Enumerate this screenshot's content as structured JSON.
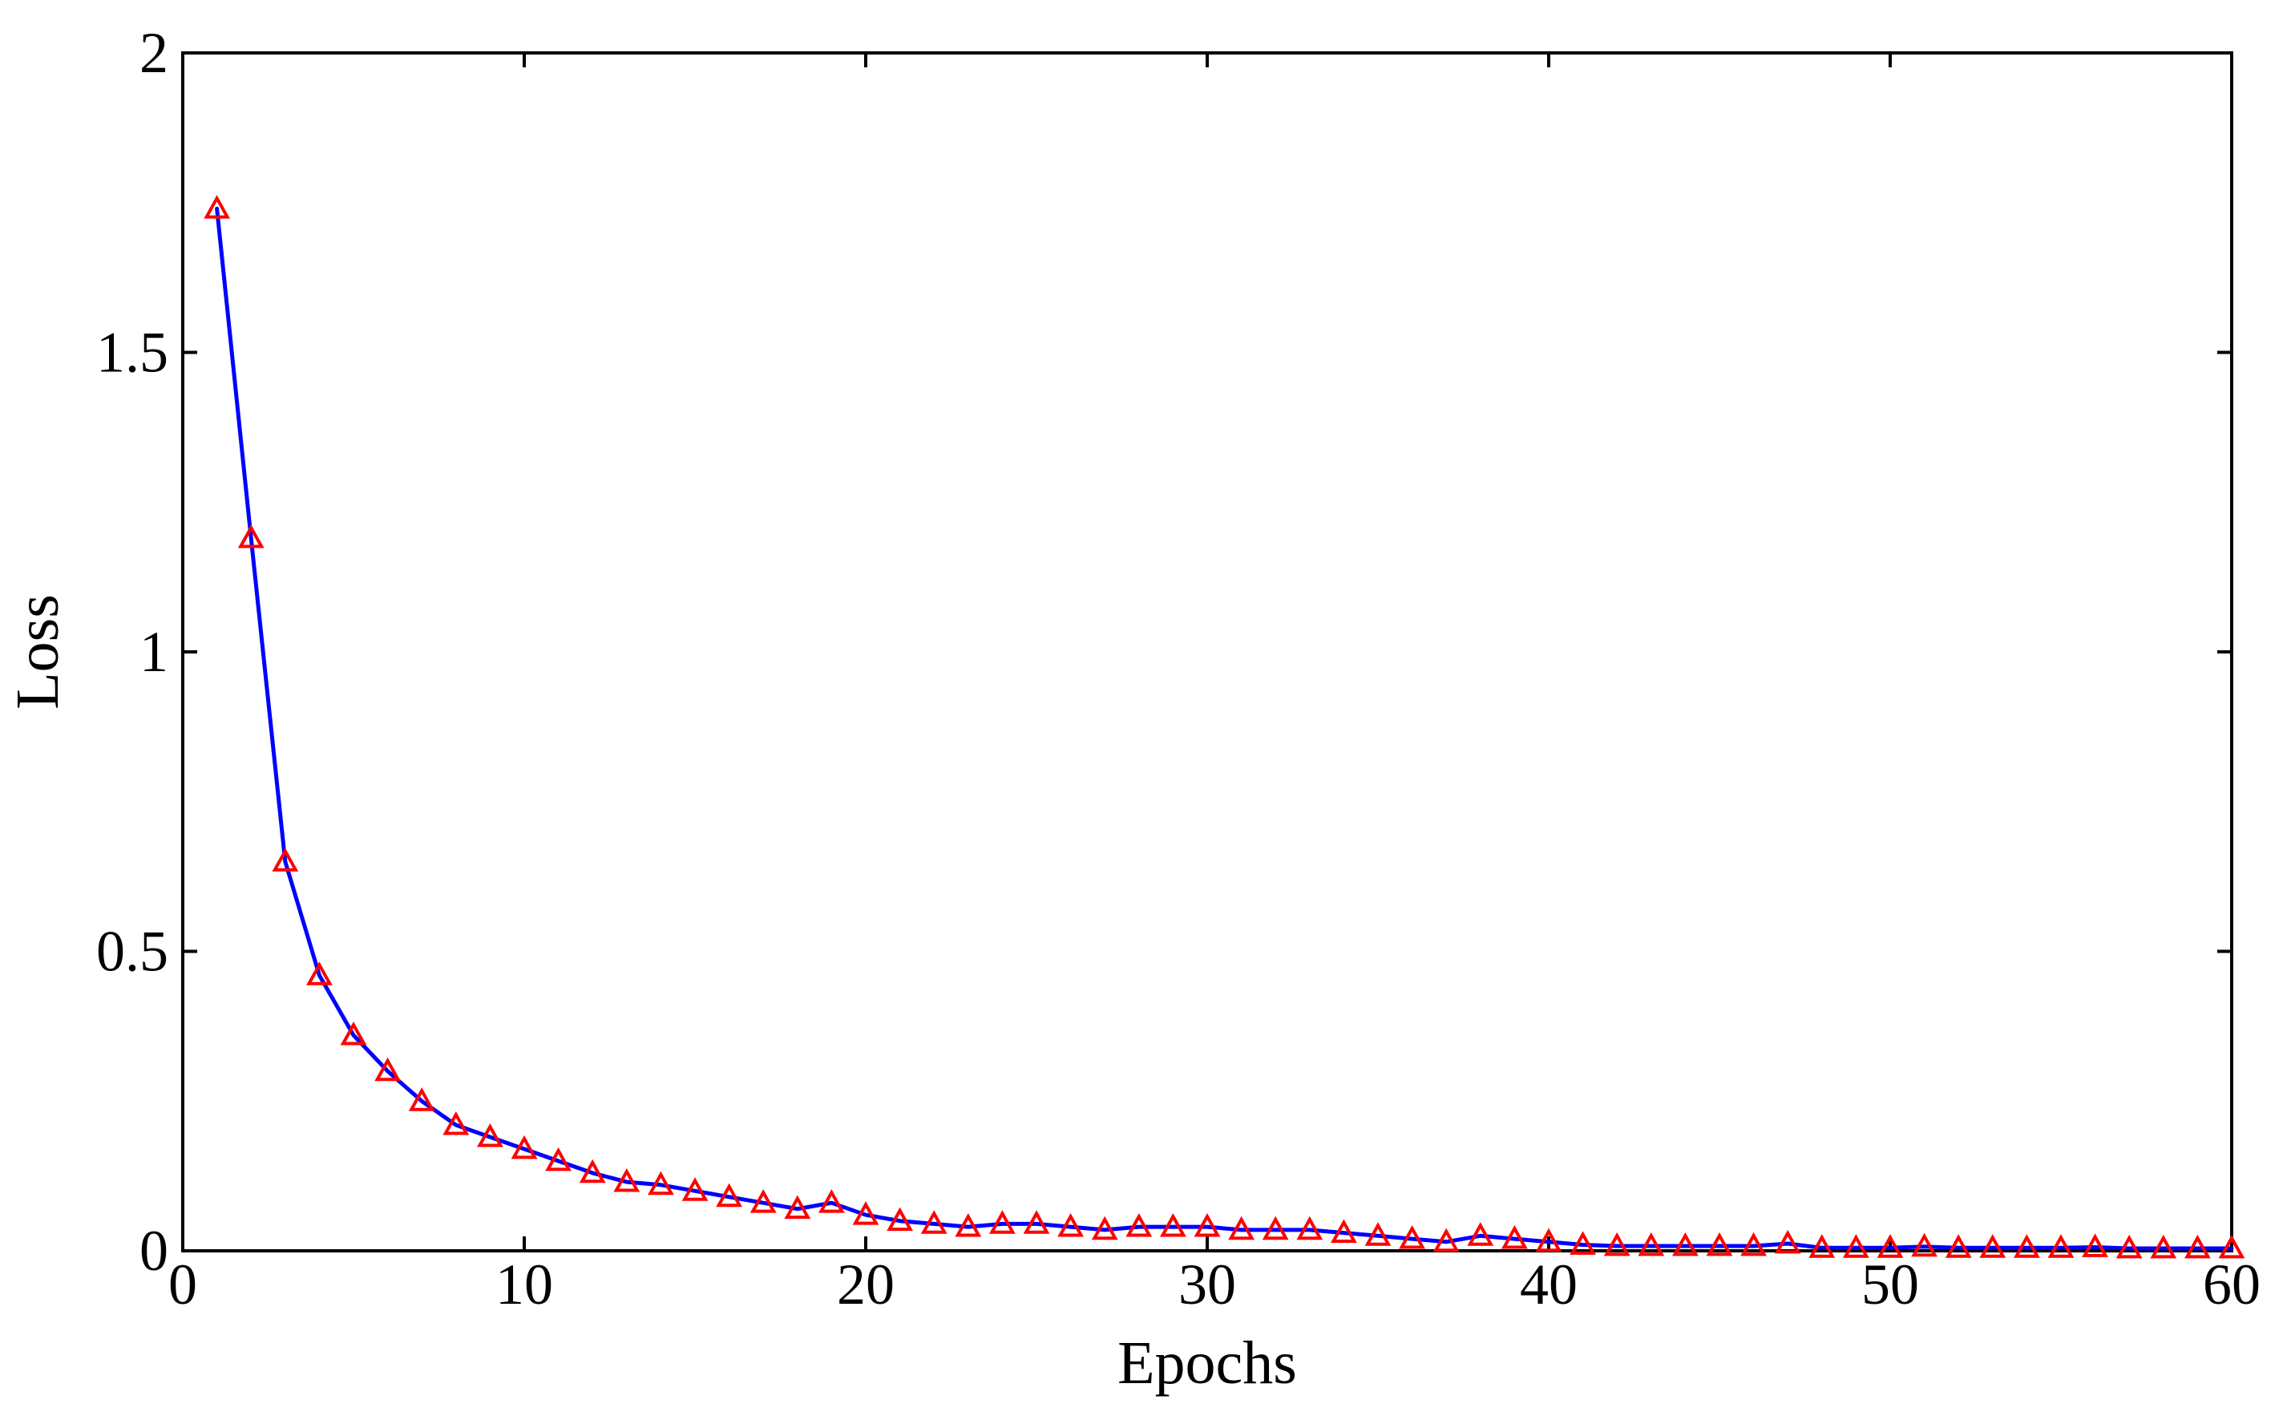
{
  "chart_data": {
    "type": "line",
    "xlabel": "Epochs",
    "ylabel": "Loss",
    "xlim": [
      0,
      60
    ],
    "ylim": [
      0,
      2
    ],
    "xticks": [
      "0",
      "10",
      "20",
      "30",
      "40",
      "50",
      "60"
    ],
    "yticks": [
      "0",
      "0.5",
      "1",
      "1.5",
      "2"
    ],
    "grid": false,
    "line_color": "#0000ff",
    "marker_color": "#ff0000",
    "marker": "triangle",
    "x": [
      1,
      2,
      3,
      4,
      5,
      6,
      7,
      8,
      9,
      10,
      11,
      12,
      13,
      14,
      15,
      16,
      17,
      18,
      19,
      20,
      21,
      22,
      23,
      24,
      25,
      26,
      27,
      28,
      29,
      30,
      31,
      32,
      33,
      34,
      35,
      36,
      37,
      38,
      39,
      40,
      41,
      42,
      43,
      44,
      45,
      46,
      47,
      48,
      49,
      50,
      51,
      52,
      53,
      54,
      55,
      56,
      57,
      58,
      59,
      60
    ],
    "series": [
      {
        "values": [
          1.74,
          1.19,
          0.65,
          0.46,
          0.36,
          0.3,
          0.25,
          0.21,
          0.19,
          0.17,
          0.15,
          0.13,
          0.115,
          0.11,
          0.1,
          0.09,
          0.08,
          0.07,
          0.08,
          0.06,
          0.05,
          0.045,
          0.04,
          0.045,
          0.045,
          0.04,
          0.035,
          0.04,
          0.04,
          0.04,
          0.035,
          0.035,
          0.035,
          0.03,
          0.025,
          0.02,
          0.015,
          0.025,
          0.02,
          0.015,
          0.01,
          0.008,
          0.008,
          0.008,
          0.008,
          0.008,
          0.012,
          0.005,
          0.005,
          0.005,
          0.007,
          0.005,
          0.005,
          0.005,
          0.005,
          0.006,
          0.004,
          0.004,
          0.004,
          0.004
        ]
      }
    ]
  }
}
